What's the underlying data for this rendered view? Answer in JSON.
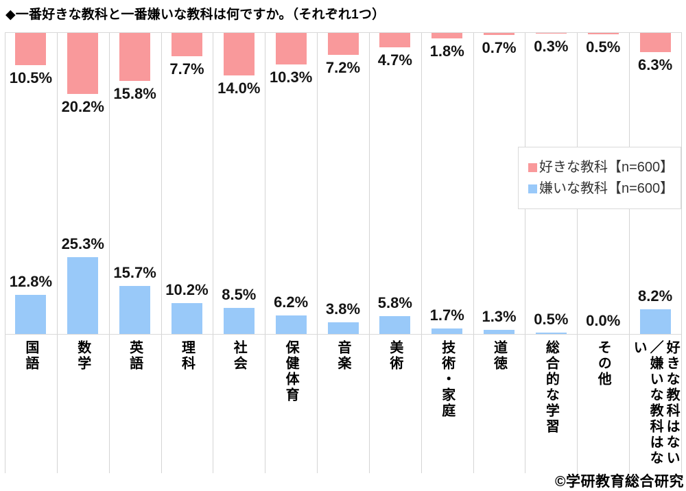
{
  "title": "◆一番好きな教科と一番嫌いな教科は何ですか。（それぞれ1つ）",
  "footer": {
    "copyright": "©学研教育総合研究"
  },
  "legend": {
    "items": [
      {
        "label": "好きな教科【n=600】",
        "color": "#f9999b"
      },
      {
        "label": "嫌いな教科【n=600】",
        "color": "#99c9f9"
      }
    ]
  },
  "chart_data": {
    "type": "bar",
    "title": "一番好きな教科と一番嫌いな教科は何ですか。（それぞれ1つ）",
    "categories": [
      "国語",
      "数学",
      "英語",
      "理科",
      "社会",
      "保健体育",
      "音楽",
      "美術",
      "技術・家庭",
      "道徳",
      "総合的な学習",
      "その他",
      "好きな教科はない\n／嫌いな教科はない"
    ],
    "series": [
      {
        "name": "好きな教科【n=600】",
        "color": "#f9999b",
        "position": "hanging-from-top",
        "values": [
          10.5,
          20.2,
          15.8,
          7.7,
          14.0,
          10.3,
          7.2,
          4.7,
          1.8,
          0.7,
          0.3,
          0.5,
          6.3
        ],
        "labels": [
          "10.5%",
          "20.2%",
          "15.8%",
          "7.7%",
          "14.0%",
          "10.3%",
          "7.2%",
          "4.7%",
          "1.8%",
          "0.7%",
          "0.3%",
          "0.5%",
          "6.3%"
        ]
      },
      {
        "name": "嫌いな教科【n=600】",
        "color": "#99c9f9",
        "position": "rising-from-baseline",
        "values": [
          12.8,
          25.3,
          15.7,
          10.2,
          8.5,
          6.2,
          3.8,
          5.8,
          1.7,
          1.3,
          0.5,
          0.0,
          8.2
        ],
        "labels": [
          "12.8%",
          "25.3%",
          "15.7%",
          "10.2%",
          "8.5%",
          "6.2%",
          "3.8%",
          "5.8%",
          "1.7%",
          "1.3%",
          "0.5%",
          "0.0%",
          "8.2%"
        ]
      }
    ],
    "value_suffix": "%",
    "ylim": [
      0,
      30
    ],
    "grid": "vertical-category-separators",
    "legend_position": "middle-right"
  }
}
